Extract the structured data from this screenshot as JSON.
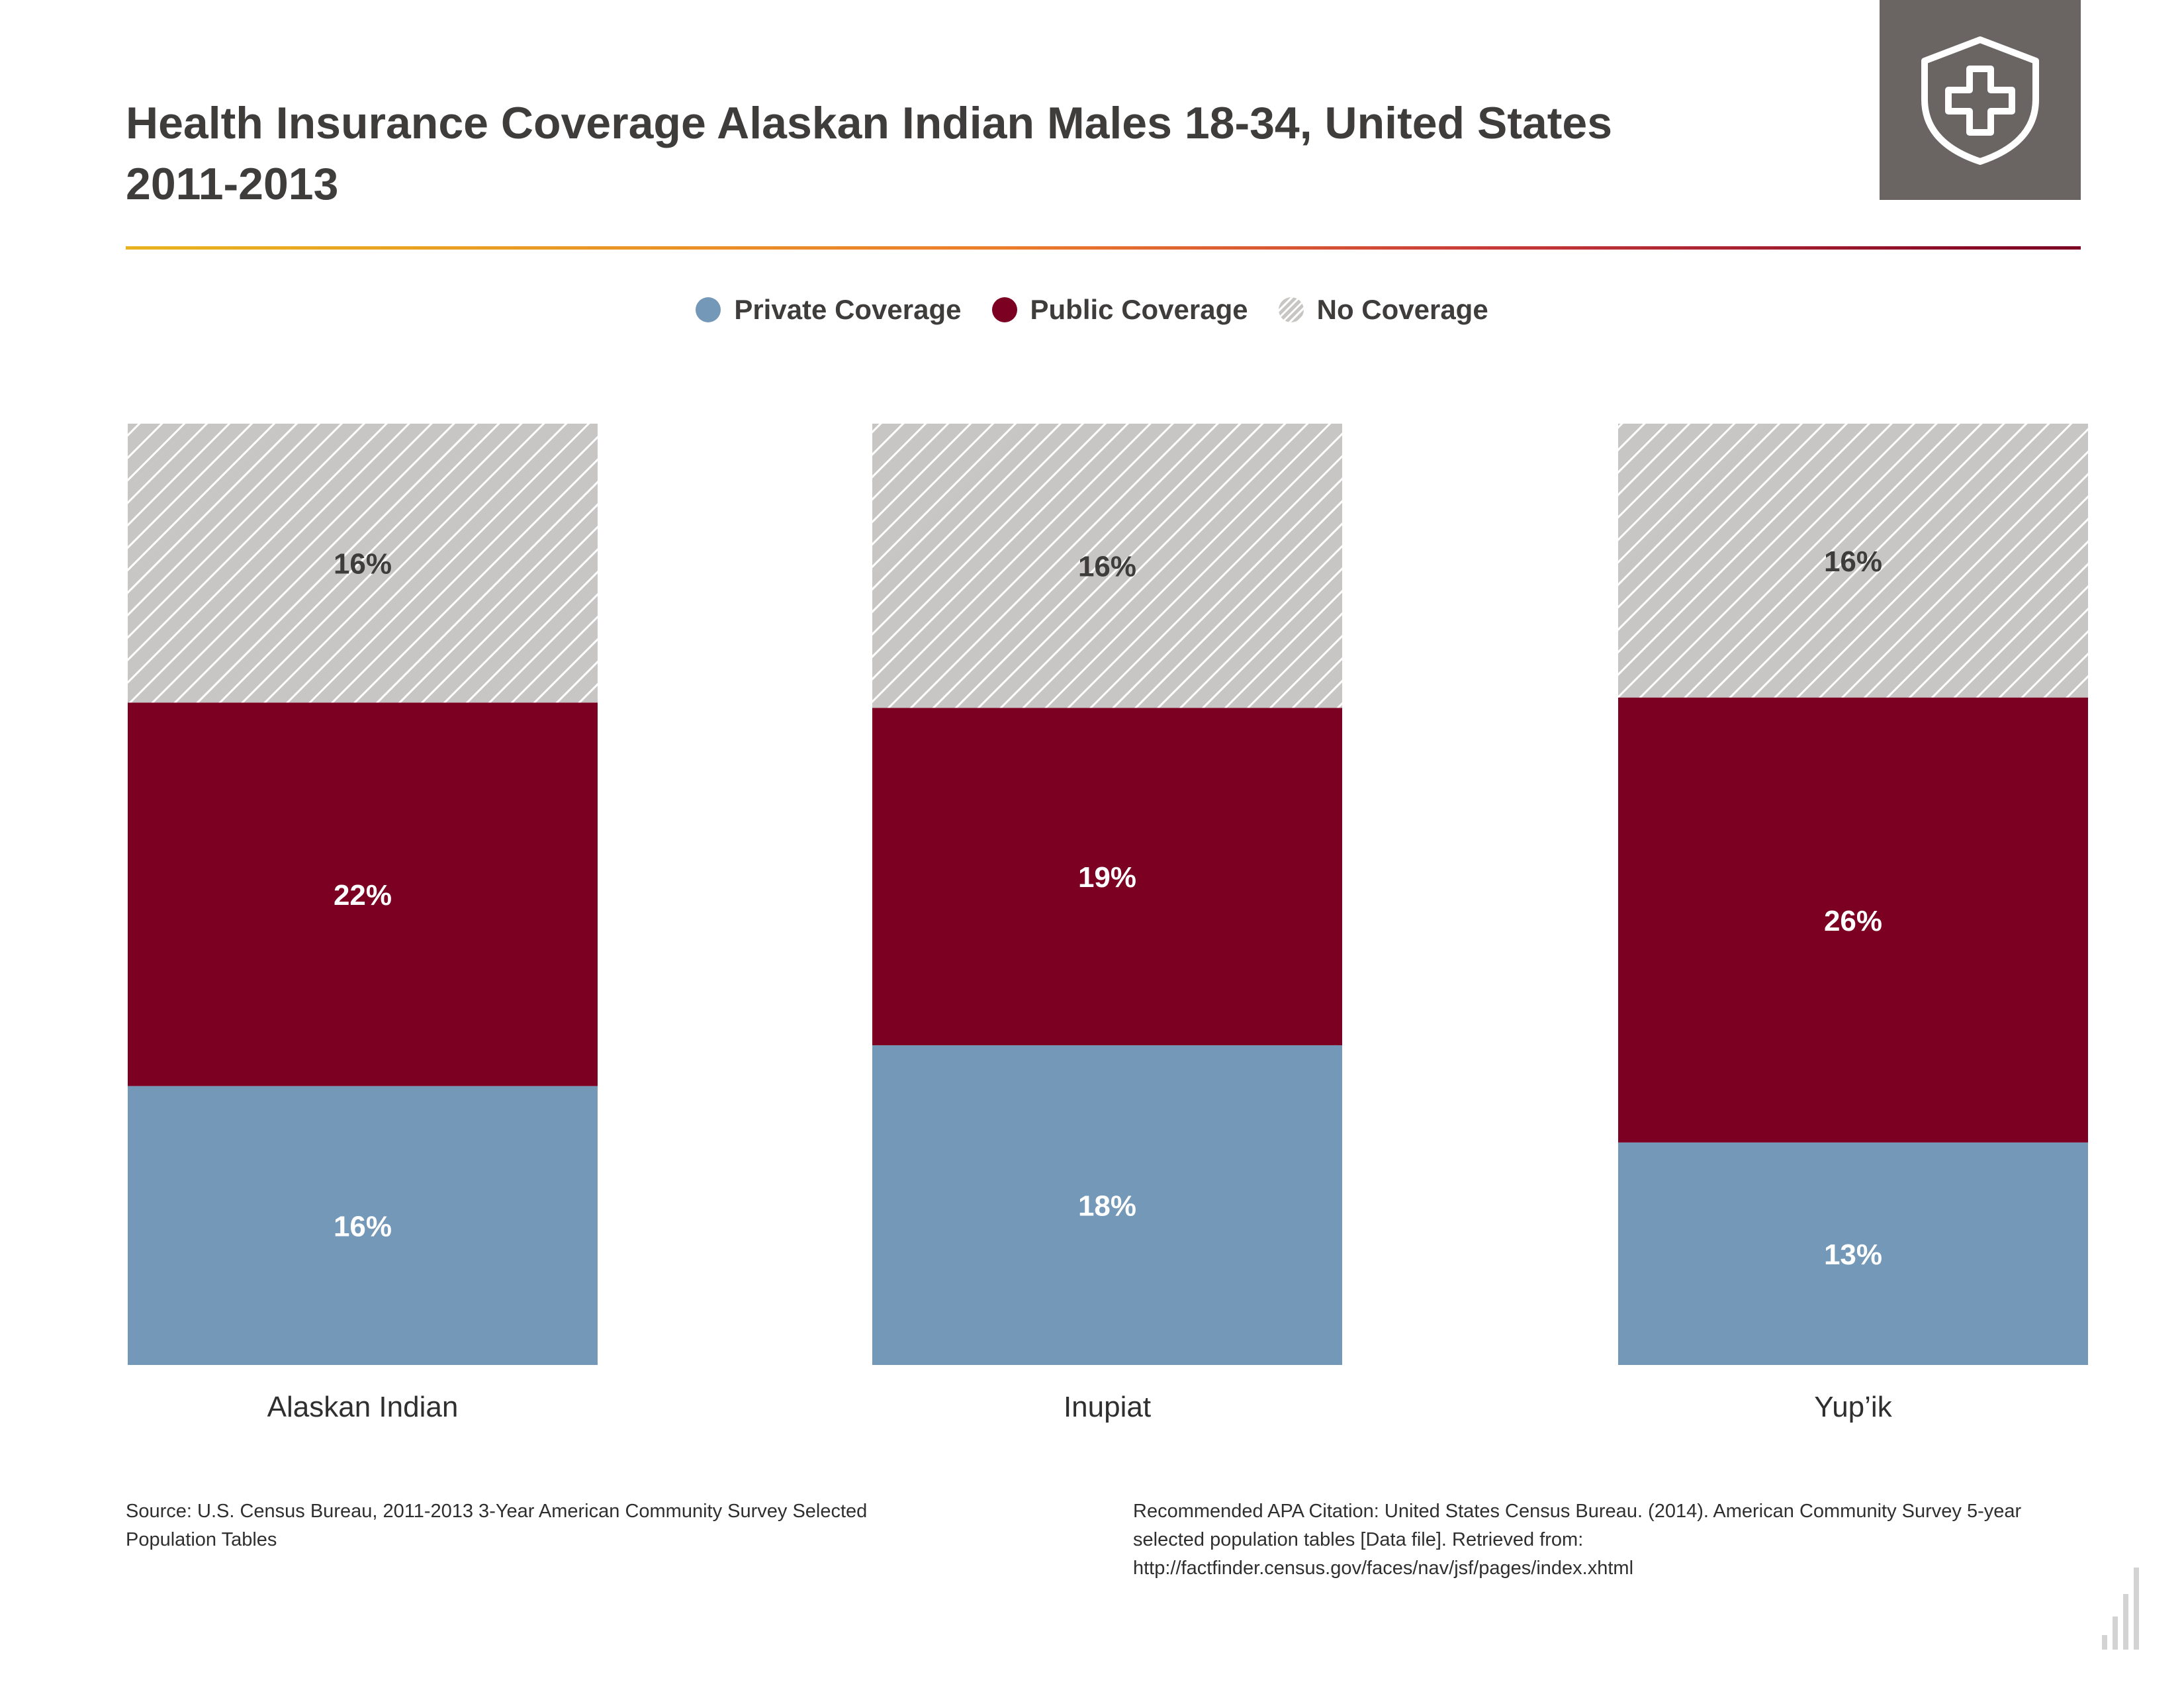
{
  "title": {
    "line1": "Health Insurance Coverage Alaskan Indian Males 18-34, United States",
    "line2": "2011-2013"
  },
  "header_icon": "shield-plus-icon",
  "legend": [
    {
      "label": "Private Coverage",
      "color": "#7498b8",
      "pattern": "solid"
    },
    {
      "label": "Public Coverage",
      "color": "#7b0022",
      "pattern": "solid"
    },
    {
      "label": "No Coverage",
      "color": "#c8c6c4",
      "pattern": "hatch"
    }
  ],
  "chart_data": {
    "type": "bar",
    "stacked": true,
    "categories": [
      "Alaskan Indian",
      "Inupiat",
      "Yup’ik"
    ],
    "series": [
      {
        "name": "Private Coverage",
        "values": [
          16,
          18,
          13
        ],
        "labels": [
          "16%",
          "18%",
          "13%"
        ],
        "color": "#7498b8"
      },
      {
        "name": "Public Coverage",
        "values": [
          22,
          19,
          26
        ],
        "labels": [
          "22%",
          "19%",
          "26%"
        ],
        "color": "#7b0022"
      },
      {
        "name": "No Coverage",
        "values": [
          16,
          16,
          16
        ],
        "labels": [
          "16%",
          "16%",
          "16%"
        ],
        "color": "#c8c6c4"
      }
    ],
    "title": "Health Insurance Coverage Alaskan Indian Males 18-34, United States 2011-2013",
    "xlabel": "",
    "ylabel": "",
    "legend_position": "top-center",
    "grid": false
  },
  "footer": {
    "source": "Source: U.S. Census Bureau, 2011-2013 3-Year American Community Survey Selected Population Tables",
    "citation": "Recommended APA Citation: United States Census Bureau. (2014). American Community Survey 5-year selected population tables [Data file]. Retrieved from: http://factfinder.census.gov/faces/nav/jsf/pages/index.xhtml"
  },
  "corner_icon": "bar-chart-icon"
}
